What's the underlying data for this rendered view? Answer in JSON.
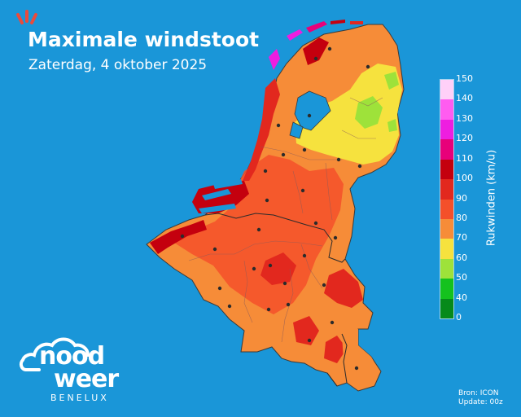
{
  "header": {
    "title": "Maximale windstoot",
    "subtitle": "Zaterdag, 4 oktober 2025"
  },
  "legend": {
    "title": "Rukwinden (km/u)",
    "bins": [
      {
        "label": "150",
        "color": "#ffd0f8"
      },
      {
        "label": "140",
        "color": "#ffa6f4"
      },
      {
        "label": "130",
        "color": "#ff5cf0"
      },
      {
        "label": "120",
        "color": "#ee1ee0"
      },
      {
        "label": "110",
        "color": "#e8007a"
      },
      {
        "label": "100",
        "color": "#c4000e"
      },
      {
        "label": "90",
        "color": "#e2281e"
      },
      {
        "label": "80",
        "color": "#f4502a"
      },
      {
        "label": "70",
        "color": "#f68c38"
      },
      {
        "label": "60",
        "color": "#f6e23e"
      },
      {
        "label": "50",
        "color": "#9ee23a"
      },
      {
        "label": "40",
        "color": "#14c21e"
      },
      {
        "label": "0",
        "color": "#068a1a"
      }
    ]
  },
  "credits": {
    "source": "Bron: ICON",
    "update": "Update: 00z"
  },
  "logo": {
    "word1": "nood",
    "word2": "weer",
    "sub": "BENELUX"
  },
  "colors": {
    "background": "#1a96d8",
    "border_lines": "#3a3a3a",
    "city_dot": "#2b2b2b"
  }
}
